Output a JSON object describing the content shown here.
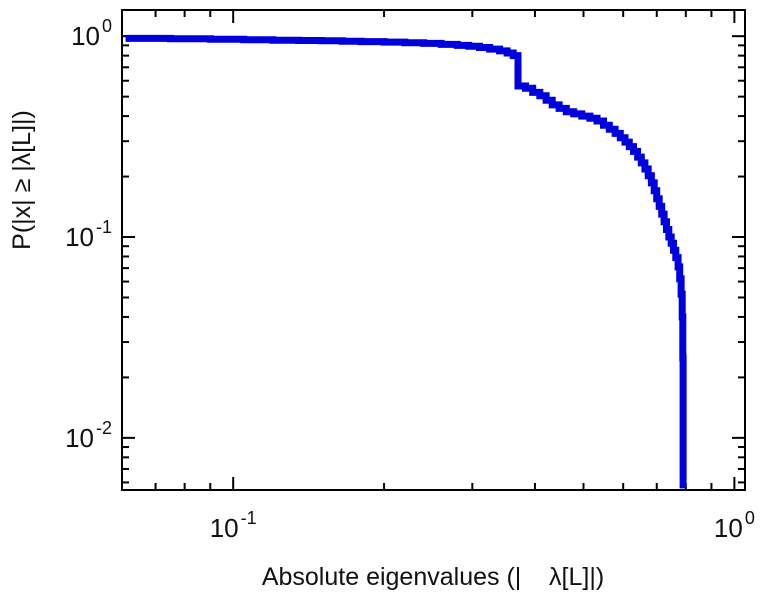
{
  "figure": {
    "background": "#ffffff"
  },
  "chart_data": {
    "type": "line",
    "subtype": "log-log stepped CCDF curve",
    "title": "",
    "xlabel": "Absolute eigenvalues (|    λ[L]|)",
    "ylabel": "P(|x| ≥ |λ[L]|)",
    "xscale": "log",
    "yscale": "log",
    "xlim": [
      0.06,
      1.05
    ],
    "ylim": [
      0.0055,
      1.35
    ],
    "grid": false,
    "legend": null,
    "frame_color": "#000000",
    "line_color": "#0000dd",
    "line_width": 7,
    "x_ticks": [
      {
        "value": 0.1,
        "base": "10",
        "exp": "-1"
      },
      {
        "value": 1,
        "base": "10",
        "exp": "0"
      }
    ],
    "y_ticks": [
      {
        "value": 1,
        "base": "10",
        "exp": "0"
      },
      {
        "value": 0.1,
        "base": "10",
        "exp": "-1"
      },
      {
        "value": 0.01,
        "base": "10",
        "exp": "-2"
      }
    ],
    "points": [
      [
        0.061,
        0.975
      ],
      [
        0.075,
        0.97
      ],
      [
        0.09,
        0.965
      ],
      [
        0.105,
        0.96
      ],
      [
        0.12,
        0.955
      ],
      [
        0.135,
        0.952
      ],
      [
        0.15,
        0.948
      ],
      [
        0.165,
        0.944
      ],
      [
        0.18,
        0.94
      ],
      [
        0.2,
        0.934
      ],
      [
        0.22,
        0.927
      ],
      [
        0.24,
        0.92
      ],
      [
        0.26,
        0.91
      ],
      [
        0.28,
        0.9
      ],
      [
        0.295,
        0.89
      ],
      [
        0.31,
        0.878
      ],
      [
        0.325,
        0.862
      ],
      [
        0.34,
        0.845
      ],
      [
        0.352,
        0.825
      ],
      [
        0.362,
        0.8
      ],
      [
        0.37,
        0.565
      ],
      [
        0.383,
        0.55
      ],
      [
        0.396,
        0.525
      ],
      [
        0.409,
        0.505
      ],
      [
        0.421,
        0.48
      ],
      [
        0.433,
        0.455
      ],
      [
        0.447,
        0.437
      ],
      [
        0.462,
        0.42
      ],
      [
        0.478,
        0.41
      ],
      [
        0.496,
        0.4
      ],
      [
        0.515,
        0.39
      ],
      [
        0.532,
        0.378
      ],
      [
        0.548,
        0.36
      ],
      [
        0.563,
        0.344
      ],
      [
        0.578,
        0.328
      ],
      [
        0.592,
        0.312
      ],
      [
        0.605,
        0.297
      ],
      [
        0.617,
        0.282
      ],
      [
        0.629,
        0.267
      ],
      [
        0.641,
        0.25
      ],
      [
        0.652,
        0.234
      ],
      [
        0.663,
        0.218
      ],
      [
        0.673,
        0.202
      ],
      [
        0.683,
        0.186
      ],
      [
        0.692,
        0.17
      ],
      [
        0.7,
        0.155
      ],
      [
        0.708,
        0.142
      ],
      [
        0.716,
        0.13
      ],
      [
        0.724,
        0.119
      ],
      [
        0.732,
        0.109
      ],
      [
        0.74,
        0.1
      ],
      [
        0.748,
        0.093
      ],
      [
        0.756,
        0.086
      ],
      [
        0.764,
        0.079
      ],
      [
        0.772,
        0.071
      ],
      [
        0.778,
        0.062
      ],
      [
        0.783,
        0.052
      ],
      [
        0.787,
        0.04
      ],
      [
        0.789,
        0.025
      ],
      [
        0.79,
        0.0056
      ]
    ]
  }
}
